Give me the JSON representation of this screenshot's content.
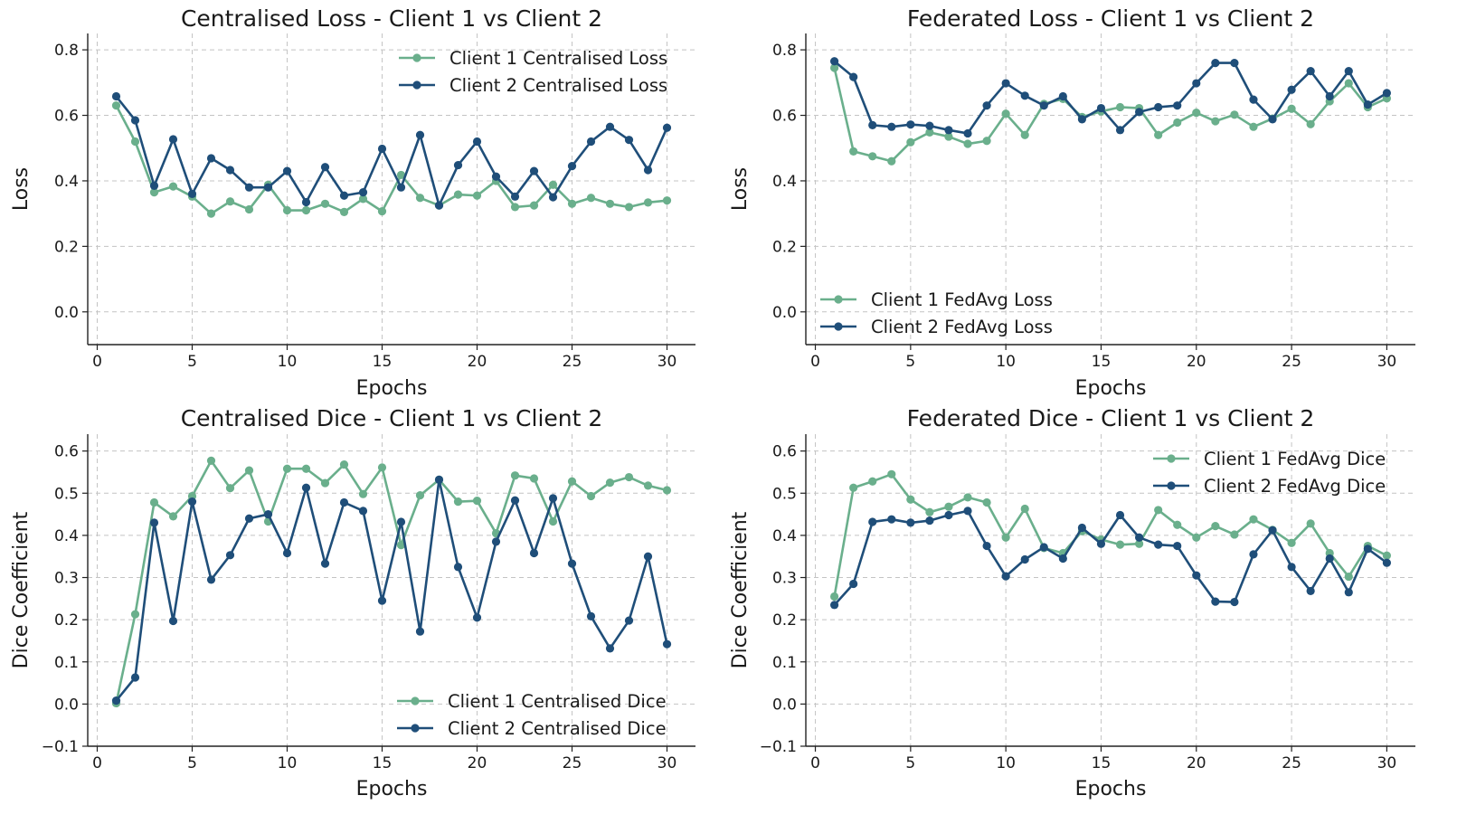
{
  "chart_data": [
    {
      "type": "line",
      "title": "Centralised Loss - Client 1 vs Client 2",
      "xlabel": "Epochs",
      "ylabel": "Loss",
      "xlim": [
        -0.5,
        31.5
      ],
      "ylim": [
        -0.1,
        0.85
      ],
      "xticks": [
        0,
        5,
        10,
        15,
        20,
        25,
        30
      ],
      "xtick_labels": [
        "0",
        "5",
        "10",
        "15",
        "20",
        "25",
        "30"
      ],
      "yticks": [
        0.0,
        0.2,
        0.4,
        0.6,
        0.8
      ],
      "ytick_labels": [
        "0.0",
        "0.2",
        "0.4",
        "0.6",
        "0.8"
      ],
      "grid": true,
      "legend_position": "top-right",
      "x": [
        1,
        2,
        3,
        4,
        5,
        6,
        7,
        8,
        9,
        10,
        11,
        12,
        13,
        14,
        15,
        16,
        17,
        18,
        19,
        20,
        21,
        22,
        23,
        24,
        25,
        26,
        27,
        28,
        29,
        30
      ],
      "series": [
        {
          "name": "Client 1 Centralised Loss",
          "color": "#6aaf8c",
          "values": [
            0.63,
            0.52,
            0.365,
            0.383,
            0.352,
            0.3,
            0.337,
            0.313,
            0.388,
            0.31,
            0.31,
            0.33,
            0.305,
            0.345,
            0.307,
            0.418,
            0.348,
            0.325,
            0.358,
            0.355,
            0.4,
            0.32,
            0.325,
            0.388,
            0.33,
            0.348,
            0.33,
            0.32,
            0.334,
            0.34
          ]
        },
        {
          "name": "Client 2 Centralised Loss",
          "color": "#1f4e79",
          "values": [
            0.658,
            0.585,
            0.385,
            0.527,
            0.36,
            0.469,
            0.433,
            0.38,
            0.38,
            0.43,
            0.335,
            0.442,
            0.355,
            0.365,
            0.498,
            0.38,
            0.54,
            0.325,
            0.448,
            0.52,
            0.413,
            0.352,
            0.43,
            0.35,
            0.445,
            0.52,
            0.565,
            0.525,
            0.433,
            0.562
          ]
        }
      ]
    },
    {
      "type": "line",
      "title": "Federated Loss - Client 1 vs Client 2",
      "xlabel": "Epochs",
      "ylabel": "Loss",
      "xlim": [
        -0.5,
        31.5
      ],
      "ylim": [
        -0.1,
        0.85
      ],
      "xticks": [
        0,
        5,
        10,
        15,
        20,
        25,
        30
      ],
      "xtick_labels": [
        "0",
        "5",
        "10",
        "15",
        "20",
        "25",
        "30"
      ],
      "yticks": [
        0.0,
        0.2,
        0.4,
        0.6,
        0.8
      ],
      "ytick_labels": [
        "0.0",
        "0.2",
        "0.4",
        "0.6",
        "0.8"
      ],
      "grid": true,
      "legend_position": "bottom-left",
      "x": [
        1,
        2,
        3,
        4,
        5,
        6,
        7,
        8,
        9,
        10,
        11,
        12,
        13,
        14,
        15,
        16,
        17,
        18,
        19,
        20,
        21,
        22,
        23,
        24,
        25,
        26,
        27,
        28,
        29,
        30
      ],
      "series": [
        {
          "name": "Client 1 FedAvg Loss",
          "color": "#6aaf8c",
          "values": [
            0.745,
            0.49,
            0.475,
            0.46,
            0.518,
            0.548,
            0.535,
            0.513,
            0.522,
            0.605,
            0.54,
            0.635,
            0.65,
            0.595,
            0.612,
            0.625,
            0.622,
            0.54,
            0.578,
            0.608,
            0.582,
            0.602,
            0.565,
            0.59,
            0.62,
            0.573,
            0.643,
            0.698,
            0.625,
            0.652
          ]
        },
        {
          "name": "Client 2 FedAvg Loss",
          "color": "#1f4e79",
          "values": [
            0.765,
            0.717,
            0.57,
            0.565,
            0.572,
            0.568,
            0.555,
            0.545,
            0.63,
            0.698,
            0.66,
            0.63,
            0.658,
            0.588,
            0.622,
            0.555,
            0.61,
            0.625,
            0.63,
            0.698,
            0.76,
            0.76,
            0.648,
            0.588,
            0.678,
            0.735,
            0.658,
            0.735,
            0.633,
            0.668
          ]
        }
      ]
    },
    {
      "type": "line",
      "title": "Centralised Dice - Client 1 vs Client 2",
      "xlabel": "Epochs",
      "ylabel": "Dice Coefficient",
      "xlim": [
        -0.5,
        31.5
      ],
      "ylim": [
        -0.1,
        0.64
      ],
      "xticks": [
        0,
        5,
        10,
        15,
        20,
        25,
        30
      ],
      "xtick_labels": [
        "0",
        "5",
        "10",
        "15",
        "20",
        "25",
        "30"
      ],
      "yticks": [
        -0.1,
        0.0,
        0.1,
        0.2,
        0.3,
        0.4,
        0.5,
        0.6
      ],
      "ytick_labels": [
        "−0.1",
        "0.0",
        "0.1",
        "0.2",
        "0.3",
        "0.4",
        "0.5",
        "0.6"
      ],
      "grid": true,
      "legend_position": "bottom-right",
      "x": [
        1,
        2,
        3,
        4,
        5,
        6,
        7,
        8,
        9,
        10,
        11,
        12,
        13,
        14,
        15,
        16,
        17,
        18,
        19,
        20,
        21,
        22,
        23,
        24,
        25,
        26,
        27,
        28,
        29,
        30
      ],
      "series": [
        {
          "name": "Client 1 Centralised Dice",
          "color": "#6aaf8c",
          "values": [
            0.002,
            0.213,
            0.478,
            0.445,
            0.493,
            0.577,
            0.512,
            0.554,
            0.433,
            0.558,
            0.558,
            0.524,
            0.568,
            0.498,
            0.561,
            0.377,
            0.495,
            0.532,
            0.48,
            0.482,
            0.405,
            0.542,
            0.535,
            0.433,
            0.528,
            0.493,
            0.525,
            0.538,
            0.518,
            0.507
          ]
        },
        {
          "name": "Client 2 Centralised Dice",
          "color": "#1f4e79",
          "values": [
            0.008,
            0.063,
            0.43,
            0.197,
            0.48,
            0.295,
            0.353,
            0.44,
            0.45,
            0.358,
            0.513,
            0.333,
            0.478,
            0.458,
            0.245,
            0.432,
            0.172,
            0.532,
            0.325,
            0.205,
            0.385,
            0.483,
            0.358,
            0.488,
            0.333,
            0.208,
            0.132,
            0.198,
            0.35,
            0.142
          ]
        }
      ]
    },
    {
      "type": "line",
      "title": "Federated Dice - Client 1 vs Client 2",
      "xlabel": "Epochs",
      "ylabel": "Dice Coefficient",
      "xlim": [
        -0.5,
        31.5
      ],
      "ylim": [
        -0.1,
        0.64
      ],
      "xticks": [
        0,
        5,
        10,
        15,
        20,
        25,
        30
      ],
      "xtick_labels": [
        "0",
        "5",
        "10",
        "15",
        "20",
        "25",
        "30"
      ],
      "yticks": [
        -0.1,
        0.0,
        0.1,
        0.2,
        0.3,
        0.4,
        0.5,
        0.6
      ],
      "ytick_labels": [
        "−0.1",
        "0.0",
        "0.1",
        "0.2",
        "0.3",
        "0.4",
        "0.5",
        "0.6"
      ],
      "grid": true,
      "legend_position": "top-right",
      "x": [
        1,
        2,
        3,
        4,
        5,
        6,
        7,
        8,
        9,
        10,
        11,
        12,
        13,
        14,
        15,
        16,
        17,
        18,
        19,
        20,
        21,
        22,
        23,
        24,
        25,
        26,
        27,
        28,
        29,
        30
      ],
      "series": [
        {
          "name": "Client 1 FedAvg Dice",
          "color": "#6aaf8c",
          "values": [
            0.255,
            0.513,
            0.528,
            0.545,
            0.485,
            0.455,
            0.468,
            0.49,
            0.478,
            0.395,
            0.463,
            0.37,
            0.358,
            0.41,
            0.39,
            0.378,
            0.38,
            0.46,
            0.425,
            0.395,
            0.422,
            0.402,
            0.438,
            0.413,
            0.382,
            0.428,
            0.358,
            0.302,
            0.375,
            0.352
          ]
        },
        {
          "name": "Client 2 FedAvg Dice",
          "color": "#1f4e79",
          "values": [
            0.235,
            0.285,
            0.432,
            0.438,
            0.43,
            0.435,
            0.448,
            0.458,
            0.375,
            0.303,
            0.343,
            0.372,
            0.345,
            0.418,
            0.38,
            0.448,
            0.395,
            0.378,
            0.375,
            0.305,
            0.243,
            0.242,
            0.355,
            0.412,
            0.325,
            0.268,
            0.345,
            0.265,
            0.368,
            0.335
          ]
        }
      ]
    }
  ]
}
